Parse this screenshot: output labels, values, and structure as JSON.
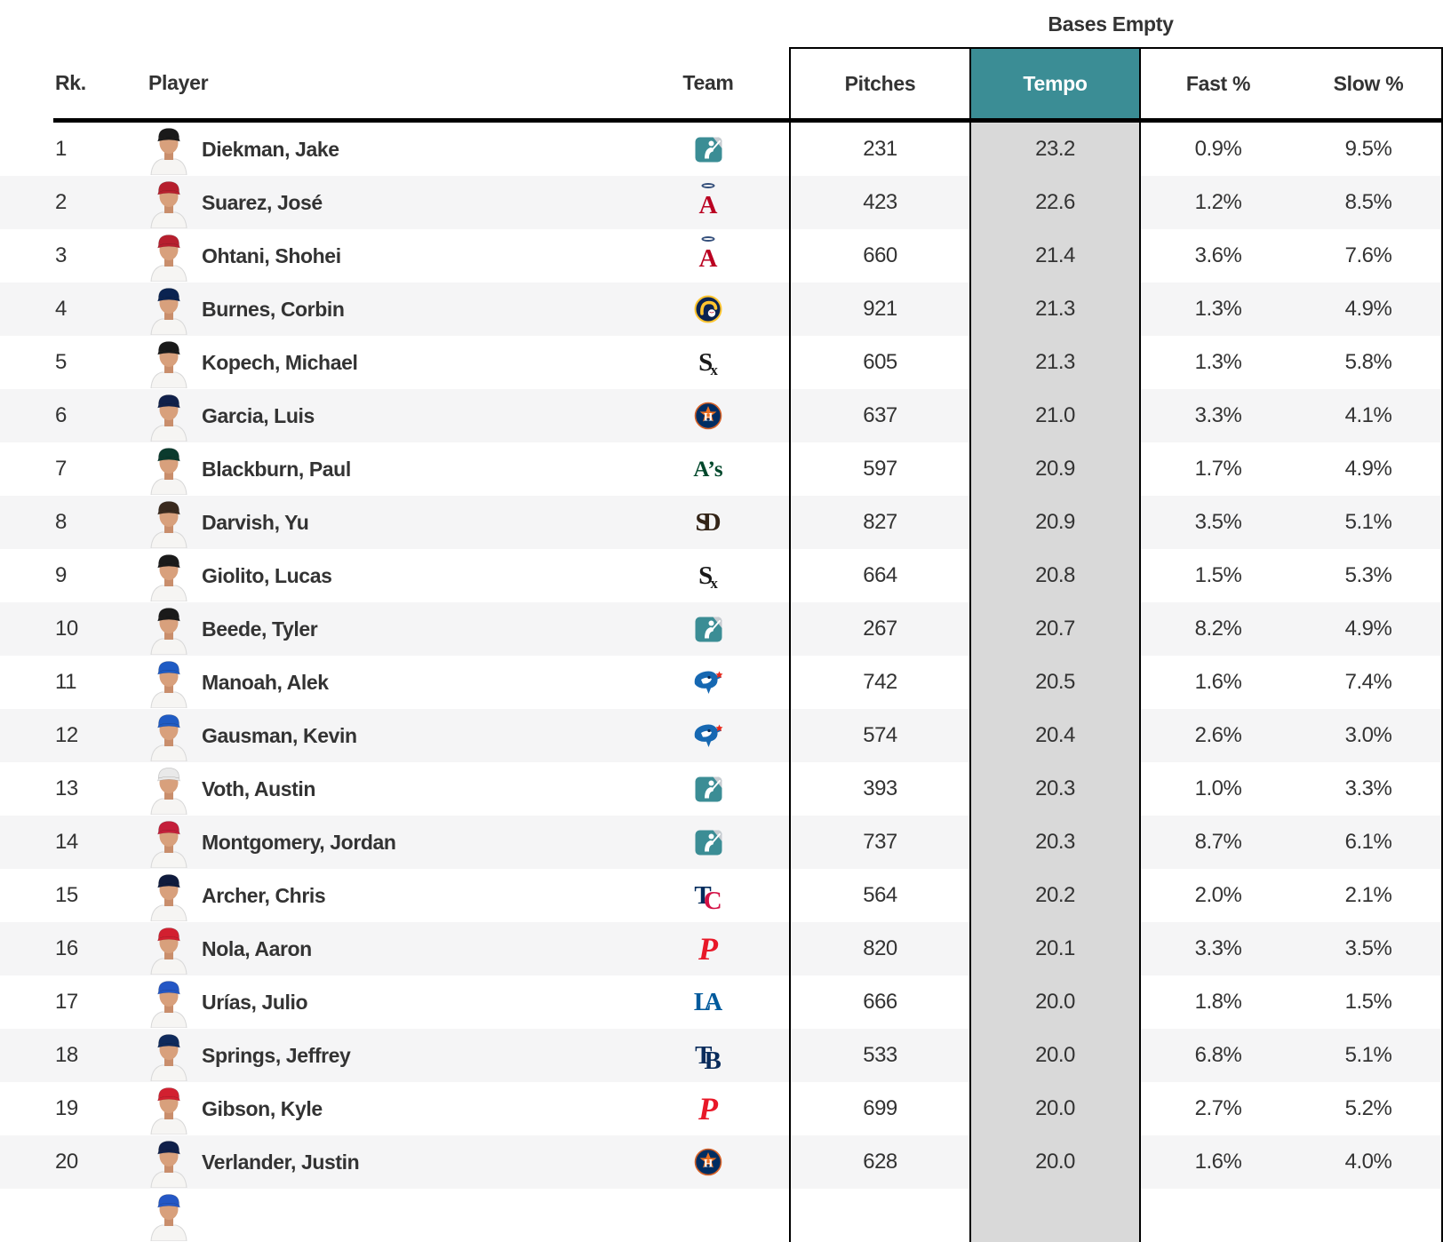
{
  "colors": {
    "tempo_header_bg": "#3b8d95",
    "tempo_header_text": "#ffffff",
    "tempo_col_bg": "#d9d9d9",
    "row_alt_bg": "#f5f5f6",
    "border": "#000000",
    "text": "#333333"
  },
  "table": {
    "group_label": "Bases Empty",
    "columns": {
      "rank": "Rk.",
      "player": "Player",
      "team": "Team",
      "pitches": "Pitches",
      "tempo": "Tempo",
      "fast": "Fast %",
      "slow": "Slow %"
    }
  },
  "players": [
    {
      "rank": "1",
      "name": "Diekman, Jake",
      "team": "MLB",
      "cap": "#1a1a1a",
      "pitches": "231",
      "tempo": "23.2",
      "fast": "0.9%",
      "slow": "9.5%"
    },
    {
      "rank": "2",
      "name": "Suarez, José",
      "team": "LAA",
      "cap": "#b71f2e",
      "pitches": "423",
      "tempo": "22.6",
      "fast": "1.2%",
      "slow": "8.5%"
    },
    {
      "rank": "3",
      "name": "Ohtani, Shohei",
      "team": "LAA",
      "cap": "#b71f2e",
      "pitches": "660",
      "tempo": "21.4",
      "fast": "3.6%",
      "slow": "7.6%"
    },
    {
      "rank": "4",
      "name": "Burnes, Corbin",
      "team": "MIL",
      "cap": "#0a2351",
      "pitches": "921",
      "tempo": "21.3",
      "fast": "1.3%",
      "slow": "4.9%"
    },
    {
      "rank": "5",
      "name": "Kopech, Michael",
      "team": "CWS",
      "cap": "#1a1a1a",
      "pitches": "605",
      "tempo": "21.3",
      "fast": "1.3%",
      "slow": "5.8%"
    },
    {
      "rank": "6",
      "name": "Garcia, Luis",
      "team": "HOU",
      "cap": "#10204a",
      "pitches": "637",
      "tempo": "21.0",
      "fast": "3.3%",
      "slow": "4.1%"
    },
    {
      "rank": "7",
      "name": "Blackburn, Paul",
      "team": "OAK",
      "cap": "#0b3b2e",
      "pitches": "597",
      "tempo": "20.9",
      "fast": "1.7%",
      "slow": "4.9%"
    },
    {
      "rank": "8",
      "name": "Darvish, Yu",
      "team": "SD",
      "cap": "#3a2a1e",
      "pitches": "827",
      "tempo": "20.9",
      "fast": "3.5%",
      "slow": "5.1%"
    },
    {
      "rank": "9",
      "name": "Giolito, Lucas",
      "team": "CWS",
      "cap": "#1a1a1a",
      "pitches": "664",
      "tempo": "20.8",
      "fast": "1.5%",
      "slow": "5.3%"
    },
    {
      "rank": "10",
      "name": "Beede, Tyler",
      "team": "MLB",
      "cap": "#1a1a1a",
      "pitches": "267",
      "tempo": "20.7",
      "fast": "8.2%",
      "slow": "4.9%"
    },
    {
      "rank": "11",
      "name": "Manoah, Alek",
      "team": "TOR",
      "cap": "#1f5bc4",
      "pitches": "742",
      "tempo": "20.5",
      "fast": "1.6%",
      "slow": "7.4%"
    },
    {
      "rank": "12",
      "name": "Gausman, Kevin",
      "team": "TOR",
      "cap": "#1f5bc4",
      "pitches": "574",
      "tempo": "20.4",
      "fast": "2.6%",
      "slow": "3.0%"
    },
    {
      "rank": "13",
      "name": "Voth, Austin",
      "team": "MLB",
      "cap": "#e9e9e9",
      "pitches": "393",
      "tempo": "20.3",
      "fast": "1.0%",
      "slow": "3.3%"
    },
    {
      "rank": "14",
      "name": "Montgomery, Jordan",
      "team": "MLB",
      "cap": "#c41e3a",
      "pitches": "737",
      "tempo": "20.3",
      "fast": "8.7%",
      "slow": "6.1%"
    },
    {
      "rank": "15",
      "name": "Archer, Chris",
      "team": "MIN",
      "cap": "#0f1b3d",
      "pitches": "564",
      "tempo": "20.2",
      "fast": "2.0%",
      "slow": "2.1%"
    },
    {
      "rank": "16",
      "name": "Nola, Aaron",
      "team": "PHI",
      "cap": "#d22030",
      "pitches": "820",
      "tempo": "20.1",
      "fast": "3.3%",
      "slow": "3.5%"
    },
    {
      "rank": "17",
      "name": "Urías, Julio",
      "team": "LAD",
      "cap": "#2457c5",
      "pitches": "666",
      "tempo": "20.0",
      "fast": "1.8%",
      "slow": "1.5%"
    },
    {
      "rank": "18",
      "name": "Springs, Jeffrey",
      "team": "TB",
      "cap": "#0f2a5c",
      "pitches": "533",
      "tempo": "20.0",
      "fast": "6.8%",
      "slow": "5.1%"
    },
    {
      "rank": "19",
      "name": "Gibson, Kyle",
      "team": "PHI",
      "cap": "#d22030",
      "pitches": "699",
      "tempo": "20.0",
      "fast": "2.7%",
      "slow": "5.2%"
    },
    {
      "rank": "20",
      "name": "Verlander, Justin",
      "team": "HOU",
      "cap": "#10204a",
      "pitches": "628",
      "tempo": "20.0",
      "fast": "1.6%",
      "slow": "4.0%"
    },
    {
      "rank": "",
      "name": "",
      "team": "",
      "cap": "#2457c5",
      "pitches": "",
      "tempo": "",
      "fast": "",
      "slow": "",
      "partial": true
    }
  ],
  "teams": {
    "MLB": {
      "kind": "svg",
      "tpl": "mlb",
      "label": "MLB league logo"
    },
    "LAA": {
      "kind": "text",
      "label": "Angels",
      "halo": "#334e7a",
      "parts": [
        {
          "t": "A",
          "cls": "lg-serif",
          "c": "#ba0021"
        }
      ]
    },
    "MIL": {
      "kind": "svg",
      "tpl": "mil",
      "label": "Brewers"
    },
    "CWS": {
      "kind": "text",
      "label": "White Sox",
      "parts": [
        {
          "t": "S",
          "cls": "lg-serif",
          "c": "#1a1a1a"
        },
        {
          "t": "x",
          "cls": "lg-serif lg-sub",
          "c": "#1a1a1a"
        }
      ]
    },
    "HOU": {
      "kind": "svg",
      "tpl": "hou",
      "label": "Astros"
    },
    "OAK": {
      "kind": "text",
      "label": "Athletics",
      "parts": [
        {
          "t": "A’s",
          "cls": "lg-serif lg-oak",
          "c": "#00472b"
        }
      ]
    },
    "SD": {
      "kind": "text",
      "label": "Padres",
      "parts": [
        {
          "t": "S",
          "cls": "lg-serif",
          "c": "#332417"
        },
        {
          "t": "D",
          "cls": "lg-serif lg-interlock",
          "c": "#332417"
        }
      ]
    },
    "TOR": {
      "kind": "svg",
      "tpl": "tor",
      "label": "Blue Jays"
    },
    "MIN": {
      "kind": "text",
      "label": "Twins",
      "parts": [
        {
          "t": "T",
          "cls": "lg-serif",
          "c": "#002b5c"
        },
        {
          "t": "C",
          "cls": "lg-serif lg-down",
          "c": "#d31145"
        }
      ]
    },
    "PHI": {
      "kind": "text",
      "label": "Phillies",
      "parts": [
        {
          "t": "P",
          "cls": "lg-script",
          "c": "#e81828"
        }
      ]
    },
    "LAD": {
      "kind": "text",
      "label": "Dodgers",
      "parts": [
        {
          "t": "L",
          "cls": "lg-serif",
          "c": "#005a9c"
        },
        {
          "t": "A",
          "cls": "lg-serif lg-interlock",
          "c": "#005a9c"
        }
      ]
    },
    "TB": {
      "kind": "text",
      "label": "Rays",
      "parts": [
        {
          "t": "T",
          "cls": "lg-serif",
          "c": "#092c5c"
        },
        {
          "t": "B",
          "cls": "lg-serif lg-down",
          "c": "#092c5c"
        }
      ]
    }
  }
}
